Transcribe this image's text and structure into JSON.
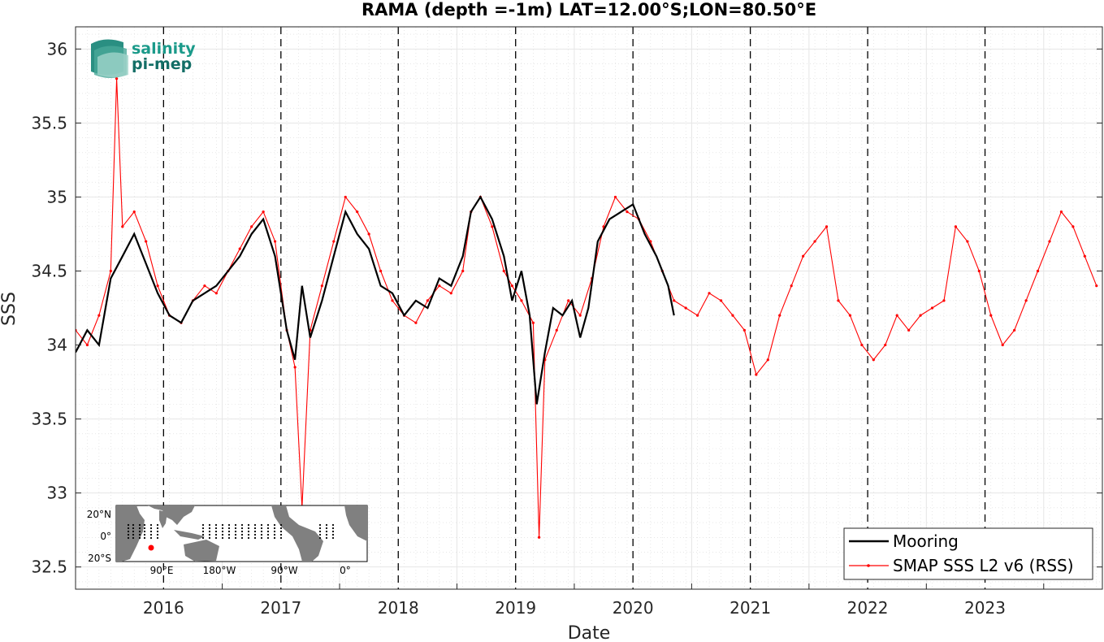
{
  "logo": {
    "line1": "salinity",
    "line2": "pi-mep"
  },
  "legend": {
    "entries": [
      {
        "label": "Mooring",
        "color": "#000000"
      },
      {
        "label": "SMAP SSS L2 v6 (RSS)",
        "color": "#ff0000"
      }
    ]
  },
  "inset_map": {
    "lat_labels": [
      "20°N",
      "0°",
      "20°S"
    ],
    "lon_labels": [
      "90°E",
      "180°W",
      "90°W",
      "0°"
    ],
    "mooring_color": "#ff0000"
  },
  "chart_data": {
    "type": "line",
    "title": "RAMA (depth =-1m) LAT=12.00°S;LON=80.50°E",
    "xlabel": "Date",
    "ylabel": "SSS",
    "xlim": [
      2015.25,
      2024.0
    ],
    "ylim": [
      32.35,
      36.15
    ],
    "yticks": [
      32.5,
      33,
      33.5,
      34,
      34.5,
      35,
      35.5,
      36
    ],
    "xticks": [
      2016,
      2017,
      2018,
      2019,
      2020,
      2021,
      2022,
      2023
    ],
    "xtick_labels": [
      "2016",
      "2017",
      "2018",
      "2019",
      "2020",
      "2021",
      "2022",
      "2023"
    ],
    "year_markers": [
      2016,
      2017,
      2018,
      2019,
      2020,
      2021,
      2022,
      2023
    ],
    "grid": true,
    "legend_position": "bottom-right",
    "series": [
      {
        "name": "Mooring",
        "color": "#000000",
        "x": [
          2015.25,
          2015.35,
          2015.45,
          2015.55,
          2015.65,
          2015.75,
          2015.85,
          2015.95,
          2016.05,
          2016.15,
          2016.25,
          2016.35,
          2016.45,
          2016.55,
          2016.65,
          2016.75,
          2016.85,
          2016.95,
          2017.05,
          2017.12,
          2017.18,
          2017.25,
          2017.35,
          2017.45,
          2017.55,
          2017.65,
          2017.75,
          2017.85,
          2017.95,
          2018.05,
          2018.15,
          2018.25,
          2018.35,
          2018.45,
          2018.55,
          2018.62,
          2018.7,
          2018.8,
          2018.9,
          2018.97,
          2019.05,
          2019.12,
          2019.18,
          2019.25,
          2019.32,
          2019.4,
          2019.48,
          2019.55,
          2019.62,
          2019.7,
          2019.8,
          2019.9,
          2020.0,
          2020.1,
          2020.2,
          2020.3,
          2020.35
        ],
        "y": [
          33.95,
          34.1,
          34.0,
          34.45,
          34.6,
          34.75,
          34.55,
          34.35,
          34.2,
          34.15,
          34.3,
          34.35,
          34.4,
          34.5,
          34.6,
          34.75,
          34.85,
          34.6,
          34.1,
          33.9,
          34.4,
          34.05,
          34.3,
          34.6,
          34.9,
          34.75,
          34.65,
          34.4,
          34.35,
          34.2,
          34.3,
          34.25,
          34.45,
          34.4,
          34.6,
          34.9,
          35.0,
          34.85,
          34.6,
          34.3,
          34.5,
          34.2,
          33.6,
          33.95,
          34.25,
          34.2,
          34.3,
          34.05,
          34.25,
          34.7,
          34.85,
          34.9,
          34.95,
          34.75,
          34.6,
          34.4,
          34.2
        ]
      },
      {
        "name": "SMAP SSS L2 v6 (RSS)",
        "color": "#ff0000",
        "x": [
          2015.25,
          2015.35,
          2015.45,
          2015.55,
          2015.6,
          2015.65,
          2015.75,
          2015.85,
          2015.95,
          2016.05,
          2016.15,
          2016.25,
          2016.35,
          2016.45,
          2016.55,
          2016.65,
          2016.75,
          2016.85,
          2016.95,
          2017.05,
          2017.12,
          2017.18,
          2017.25,
          2017.35,
          2017.45,
          2017.55,
          2017.65,
          2017.75,
          2017.85,
          2017.95,
          2018.05,
          2018.15,
          2018.25,
          2018.35,
          2018.45,
          2018.55,
          2018.62,
          2018.7,
          2018.8,
          2018.9,
          2018.97,
          2019.05,
          2019.15,
          2019.2,
          2019.25,
          2019.35,
          2019.45,
          2019.55,
          2019.65,
          2019.75,
          2019.85,
          2019.95,
          2020.05,
          2020.15,
          2020.25,
          2020.35,
          2020.45,
          2020.55,
          2020.65,
          2020.75,
          2020.85,
          2020.95,
          2021.05,
          2021.15,
          2021.25,
          2021.35,
          2021.45,
          2021.55,
          2021.65,
          2021.75,
          2021.85,
          2021.95,
          2022.05,
          2022.15,
          2022.25,
          2022.35,
          2022.45,
          2022.55,
          2022.65,
          2022.75,
          2022.85,
          2022.95,
          2023.05,
          2023.15,
          2023.25,
          2023.35,
          2023.45,
          2023.55,
          2023.65,
          2023.75,
          2023.85,
          2023.95
        ],
        "y": [
          34.1,
          34.0,
          34.2,
          34.5,
          35.8,
          34.8,
          34.9,
          34.7,
          34.4,
          34.2,
          34.15,
          34.3,
          34.4,
          34.35,
          34.5,
          34.65,
          34.8,
          34.9,
          34.7,
          34.1,
          33.85,
          32.9,
          34.1,
          34.4,
          34.7,
          35.0,
          34.9,
          34.75,
          34.5,
          34.3,
          34.2,
          34.15,
          34.3,
          34.4,
          34.35,
          34.5,
          34.9,
          35.0,
          34.8,
          34.5,
          34.4,
          34.3,
          34.15,
          32.7,
          33.9,
          34.1,
          34.3,
          34.2,
          34.45,
          34.8,
          35.0,
          34.9,
          34.85,
          34.7,
          34.5,
          34.3,
          34.25,
          34.2,
          34.35,
          34.3,
          34.2,
          34.1,
          33.8,
          33.9,
          34.2,
          34.4,
          34.6,
          34.7,
          34.8,
          34.3,
          34.2,
          34.0,
          33.9,
          34.0,
          34.2,
          34.1,
          34.2,
          34.25,
          34.3,
          34.8,
          34.7,
          34.5,
          34.2,
          34.0,
          34.1,
          34.3,
          34.5,
          34.7,
          34.9,
          34.8,
          34.6,
          34.4
        ]
      }
    ]
  }
}
